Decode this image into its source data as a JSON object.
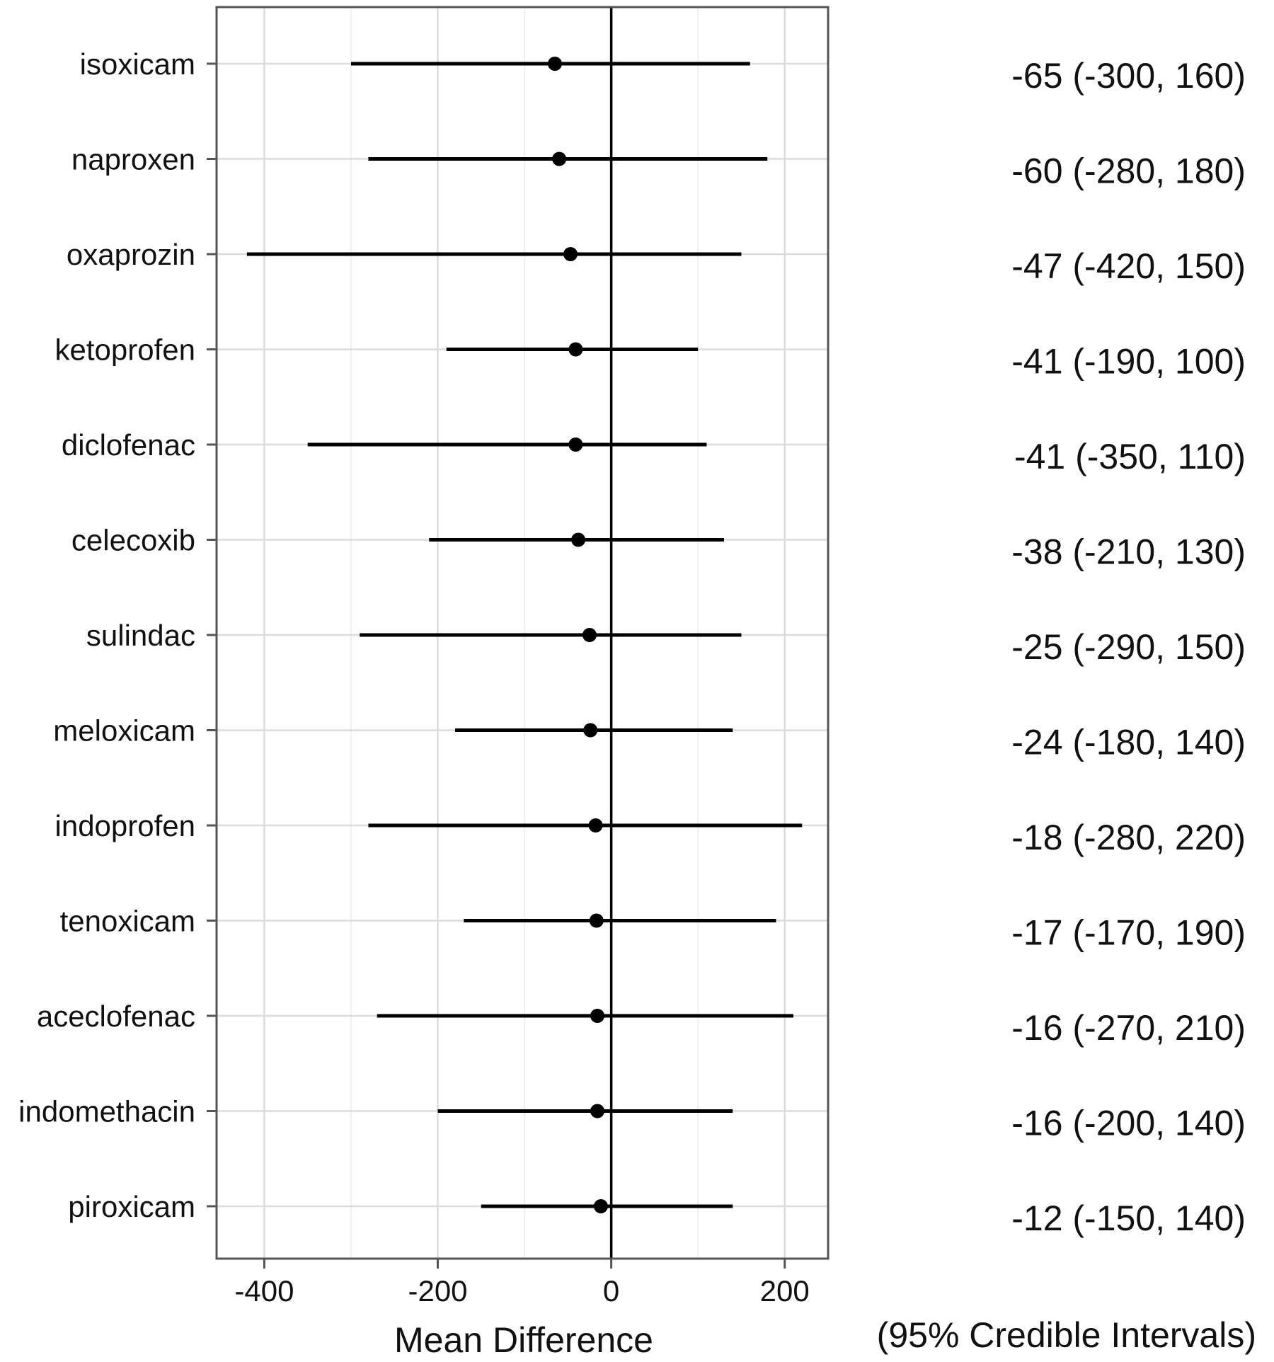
{
  "chart_data": {
    "type": "forest",
    "xlabel": "Mean Difference",
    "right_header": "(95% Credible Intervals)",
    "xlim": [
      -455,
      250
    ],
    "xticks": [
      -400,
      -200,
      0,
      200
    ],
    "reference_line": 0,
    "grid": true,
    "rows": [
      {
        "name": "isoxicam",
        "mean": -65,
        "low": -300,
        "high": 160,
        "label": "-65 (-300, 160)"
      },
      {
        "name": "naproxen",
        "mean": -60,
        "low": -280,
        "high": 180,
        "label": "-60 (-280, 180)"
      },
      {
        "name": "oxaprozin",
        "mean": -47,
        "low": -420,
        "high": 150,
        "label": "-47 (-420, 150)"
      },
      {
        "name": "ketoprofen",
        "mean": -41,
        "low": -190,
        "high": 100,
        "label": "-41 (-190, 100)"
      },
      {
        "name": "diclofenac",
        "mean": -41,
        "low": -350,
        "high": 110,
        "label": "-41 (-350, 110)"
      },
      {
        "name": "celecoxib",
        "mean": -38,
        "low": -210,
        "high": 130,
        "label": "-38 (-210, 130)"
      },
      {
        "name": "sulindac",
        "mean": -25,
        "low": -290,
        "high": 150,
        "label": "-25 (-290, 150)"
      },
      {
        "name": "meloxicam",
        "mean": -24,
        "low": -180,
        "high": 140,
        "label": "-24 (-180, 140)"
      },
      {
        "name": "indoprofen",
        "mean": -18,
        "low": -280,
        "high": 220,
        "label": "-18 (-280, 220)"
      },
      {
        "name": "tenoxicam",
        "mean": -17,
        "low": -170,
        "high": 190,
        "label": "-17 (-170, 190)"
      },
      {
        "name": "aceclofenac",
        "mean": -16,
        "low": -270,
        "high": 210,
        "label": "-16 (-270, 210)"
      },
      {
        "name": "indomethacin",
        "mean": -16,
        "low": -200,
        "high": 140,
        "label": "-16 (-200, 140)"
      },
      {
        "name": "piroxicam",
        "mean": -12,
        "low": -150,
        "high": 140,
        "label": "-12 (-150, 140)"
      }
    ]
  }
}
